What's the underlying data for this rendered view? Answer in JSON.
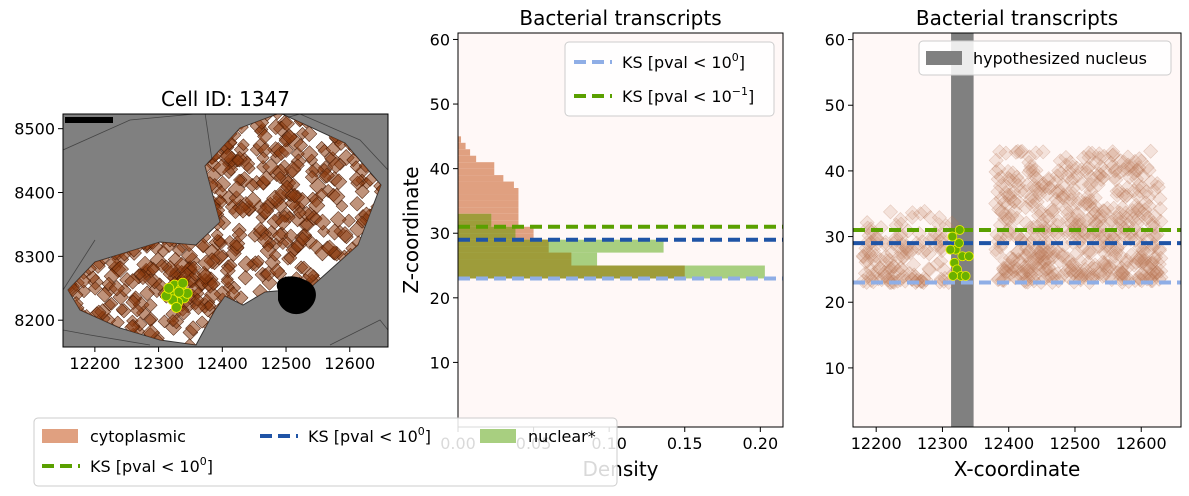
{
  "panels": {
    "map": {
      "title": "Cell ID: 1347",
      "x_ticks": [
        12200,
        12300,
        12400,
        12500,
        12600
      ],
      "y_ticks": [
        8200,
        8300,
        8400,
        8500
      ],
      "xlim": [
        12150,
        12660
      ],
      "ylim": [
        8158,
        8523
      ],
      "background_color": "#808080",
      "cell_color": "#ffffff",
      "transcript_color": "#8b3a0f",
      "bacteria_color": "#6ab000",
      "nucleus_color": "#000000",
      "bacteria_points": [
        [
          12318,
          8240
        ],
        [
          12325,
          8255
        ],
        [
          12335,
          8248
        ],
        [
          12340,
          8235
        ],
        [
          12330,
          8228
        ],
        [
          12322,
          8232
        ],
        [
          12312,
          8238
        ],
        [
          12345,
          8242
        ],
        [
          12328,
          8220
        ],
        [
          12338,
          8258
        ],
        [
          12316,
          8250
        ],
        [
          12332,
          8244
        ]
      ]
    },
    "hist": {
      "title": "Bacterial transcripts",
      "ylabel": "Z-coordinate",
      "xlabel": "Density",
      "x_ticks": [
        "0.00",
        "0.05",
        "0.10",
        "0.15",
        "0.20"
      ],
      "x_tick_values": [
        0.0,
        0.05,
        0.1,
        0.15,
        0.2
      ],
      "y_ticks": [
        10,
        20,
        30,
        40,
        50,
        60
      ],
      "xlim": [
        0,
        0.215
      ],
      "ylim": [
        0,
        61
      ],
      "legend": [
        {
          "label": "KS [pval ",
          "sup": "0",
          "color": "#8faee6"
        },
        {
          "label": "KS [pval ",
          "sup": "−1",
          "color": "#5aa000"
        }
      ],
      "cytoplasmic_color": "#e0a080",
      "nuclear_color": "#a8cf80",
      "overlap_color": "#9e9c3a",
      "cytoplasmic_bins": [
        [
          23,
          24,
          0.15
        ],
        [
          24,
          25,
          0.15
        ],
        [
          25,
          26,
          0.075
        ],
        [
          26,
          27,
          0.075
        ],
        [
          27,
          28,
          0.06
        ],
        [
          28,
          29,
          0.06
        ],
        [
          29,
          30,
          0.05
        ],
        [
          30,
          31,
          0.05
        ],
        [
          31,
          32,
          0.04
        ],
        [
          32,
          33,
          0.04
        ],
        [
          33,
          34,
          0.04
        ],
        [
          34,
          35,
          0.04
        ],
        [
          35,
          36,
          0.04
        ],
        [
          36,
          37,
          0.04
        ],
        [
          37,
          38,
          0.037
        ],
        [
          38,
          39,
          0.03
        ],
        [
          39,
          40,
          0.024
        ],
        [
          40,
          41,
          0.024
        ],
        [
          41,
          42,
          0.012
        ],
        [
          42,
          43,
          0.008
        ],
        [
          43,
          44,
          0.005
        ],
        [
          44,
          45,
          0.002
        ]
      ],
      "nuclear_bins": [
        [
          23,
          25,
          0.203
        ],
        [
          25,
          27,
          0.092
        ],
        [
          27,
          29,
          0.136
        ],
        [
          29,
          31,
          0.038
        ],
        [
          31,
          33,
          0.022
        ]
      ],
      "lines": [
        {
          "y": 23,
          "color": "#8faee6"
        },
        {
          "y": 29,
          "color": "#1f54a6"
        },
        {
          "y": 31,
          "color": "#5aa000"
        }
      ]
    },
    "scatter": {
      "title": "Bacterial transcripts",
      "xlabel": "X-coordinate",
      "x_ticks": [
        12200,
        12300,
        12400,
        12500,
        12600
      ],
      "y_ticks": [
        10,
        20,
        30,
        40,
        50,
        60
      ],
      "xlim": [
        12165,
        12660
      ],
      "ylim": [
        1,
        61
      ],
      "nucleus_label": "hypothesized nucleus",
      "nucleus_range": [
        12313,
        12347
      ],
      "nucleus_color": "#808080",
      "transcript_color": "#c08060",
      "bacteria_color": "#6ab000",
      "bacteria_points": [
        [
          12315,
          30
        ],
        [
          12320,
          28
        ],
        [
          12325,
          29
        ],
        [
          12318,
          26
        ],
        [
          12330,
          27
        ],
        [
          12322,
          25
        ],
        [
          12328,
          24
        ],
        [
          12316,
          24
        ],
        [
          12335,
          24
        ],
        [
          12312,
          28
        ],
        [
          12340,
          27
        ],
        [
          12326,
          31
        ]
      ],
      "lines": [
        {
          "y": 23,
          "color": "#8faee6"
        },
        {
          "y": 29,
          "color": "#1f54a6"
        },
        {
          "y": 31,
          "color": "#5aa000"
        }
      ]
    }
  },
  "legend_bottom": {
    "items": [
      {
        "label": "cytoplasmic",
        "type": "patch",
        "color": "#e0a080"
      },
      {
        "label": "KS [pval ",
        "sup": "0",
        "type": "line",
        "color": "#5aa000"
      },
      {
        "label": "KS [pval ",
        "sup": "0",
        "type": "line",
        "color": "#1f54a6"
      },
      {
        "label": "nuclear*",
        "type": "patch",
        "color": "#a8cf80"
      }
    ]
  }
}
